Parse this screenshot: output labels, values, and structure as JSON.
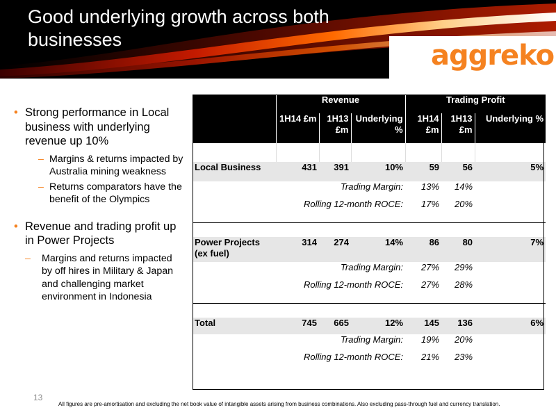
{
  "slide": {
    "title": "Good underlying growth across both businesses",
    "logo_text": "aggreko",
    "page_number": "13",
    "footnote": "All figures are pre-amortisation and excluding the net book value of intangible assets arising from business combinations. Also excluding pass-through fuel and currency translation.",
    "colors": {
      "accent": "#f58220",
      "header_bg": "#000000",
      "row_shade": "#e6e6e6"
    }
  },
  "bullets": [
    {
      "text": "Strong performance in Local business with underlying revenue up 10%",
      "sub": [
        "Margins & returns impacted by Australia mining weakness",
        "Returns comparators have the benefit of the Olympics"
      ]
    },
    {
      "text": "Revenue and trading profit up in Power Projects",
      "sub": [
        "Margins and returns impacted by off hires in Military & Japan and challenging market environment in Indonesia"
      ]
    }
  ],
  "table": {
    "group_headers": [
      "Revenue",
      "Trading Profit"
    ],
    "column_headers": [
      "1H14 £m",
      "1H13 £m",
      "Underlying %",
      "1H14 £m",
      "1H13 £m",
      "Underlying %"
    ],
    "sections": [
      {
        "label": "Local Business",
        "values": [
          "431",
          "391",
          "10%",
          "59",
          "56",
          "5%"
        ],
        "trading_margin_label": "Trading Margin:",
        "trading_margin": [
          "13%",
          "14%"
        ],
        "roce_label": "Rolling 12-month ROCE:",
        "roce": [
          "17%",
          "20%"
        ]
      },
      {
        "label": "Power Projects (ex fuel)",
        "values": [
          "314",
          "274",
          "14%",
          "86",
          "80",
          "7%"
        ],
        "trading_margin_label": "Trading Margin:",
        "trading_margin": [
          "27%",
          "29%"
        ],
        "roce_label": "Rolling 12-month ROCE:",
        "roce": [
          "27%",
          "28%"
        ]
      },
      {
        "label": "Total",
        "values": [
          "745",
          "665",
          "12%",
          "145",
          "136",
          "6%"
        ],
        "trading_margin_label": "Trading Margin:",
        "trading_margin": [
          "19%",
          "20%"
        ],
        "roce_label": "Rolling 12-month ROCE:",
        "roce": [
          "21%",
          "23%"
        ]
      }
    ]
  }
}
